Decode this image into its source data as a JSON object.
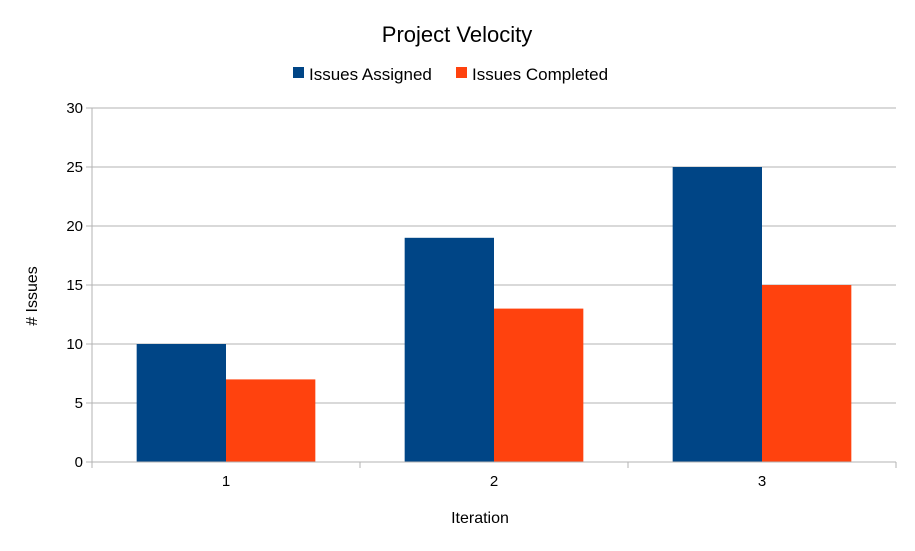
{
  "chart_data": {
    "type": "bar",
    "title": "Project Velocity",
    "xlabel": "Iteration",
    "ylabel": "# Issues",
    "categories": [
      "1",
      "2",
      "3"
    ],
    "series": [
      {
        "name": "Issues Assigned",
        "values": [
          10,
          19,
          25
        ],
        "color": "#004586"
      },
      {
        "name": "Issues Completed",
        "values": [
          7,
          13,
          15
        ],
        "color": "#ff420e"
      }
    ],
    "ylim": [
      0,
      30
    ],
    "yticks": [
      0,
      5,
      10,
      15,
      20,
      25,
      30
    ],
    "grid": true,
    "legend_position": "top"
  }
}
